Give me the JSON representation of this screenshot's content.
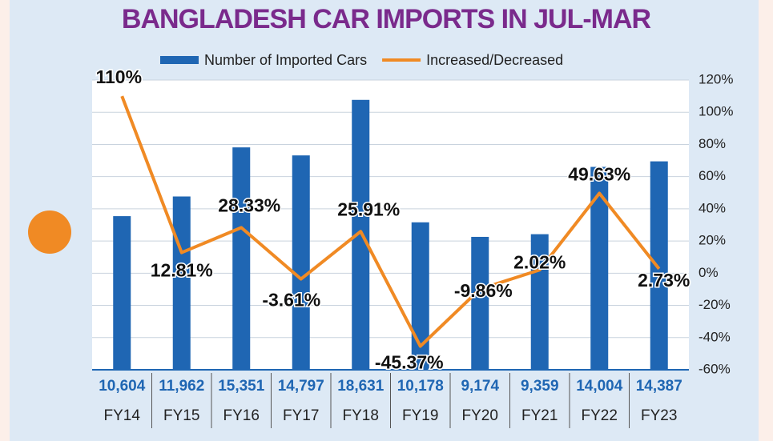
{
  "chart_data": {
    "type": "bar-line",
    "title": "BANGLADESH CAR IMPORTS IN JUL-MAR",
    "categories": [
      "FY14",
      "FY15",
      "FY16",
      "FY17",
      "FY18",
      "FY19",
      "FY20",
      "FY21",
      "FY22",
      "FY23"
    ],
    "series": [
      {
        "name": "Number of Imported Cars",
        "type": "bar",
        "color": "#1f66b3",
        "values": [
          10604,
          11962,
          15351,
          14797,
          18631,
          10178,
          9174,
          9359,
          14004,
          14387
        ],
        "value_labels": [
          "10,604",
          "11,962",
          "15,351",
          "14,797",
          "18,631",
          "10,178",
          "9,174",
          "9,359",
          "14,004",
          "14,387"
        ]
      },
      {
        "name": "Increased/Decreased",
        "type": "line",
        "color": "#f08a24",
        "axis": "y2",
        "values": [
          110,
          12.81,
          28.33,
          -3.61,
          25.91,
          -45.37,
          -9.86,
          2.02,
          49.63,
          2.73
        ],
        "value_labels": [
          "110%",
          "12.81%",
          "28.33%",
          "-3.61%",
          "25.91%",
          "-45.37%",
          "-9.86%",
          "2.02%",
          "49.63%",
          "2.73%"
        ]
      }
    ],
    "ylim": [
      0,
      20000
    ],
    "y2lim": [
      -60,
      120
    ],
    "y2ticks": [
      {
        "value": 120,
        "label": "120%"
      },
      {
        "value": 100,
        "label": "100%"
      },
      {
        "value": 80,
        "label": "80%"
      },
      {
        "value": 60,
        "label": "60%"
      },
      {
        "value": 40,
        "label": "40%"
      },
      {
        "value": 20,
        "label": "20%"
      },
      {
        "value": 0,
        "label": "0%"
      },
      {
        "value": -20,
        "label": "-20%"
      },
      {
        "value": -40,
        "label": "-40%"
      },
      {
        "value": -60,
        "label": "-60%"
      }
    ],
    "grid": true,
    "legend": "top"
  }
}
